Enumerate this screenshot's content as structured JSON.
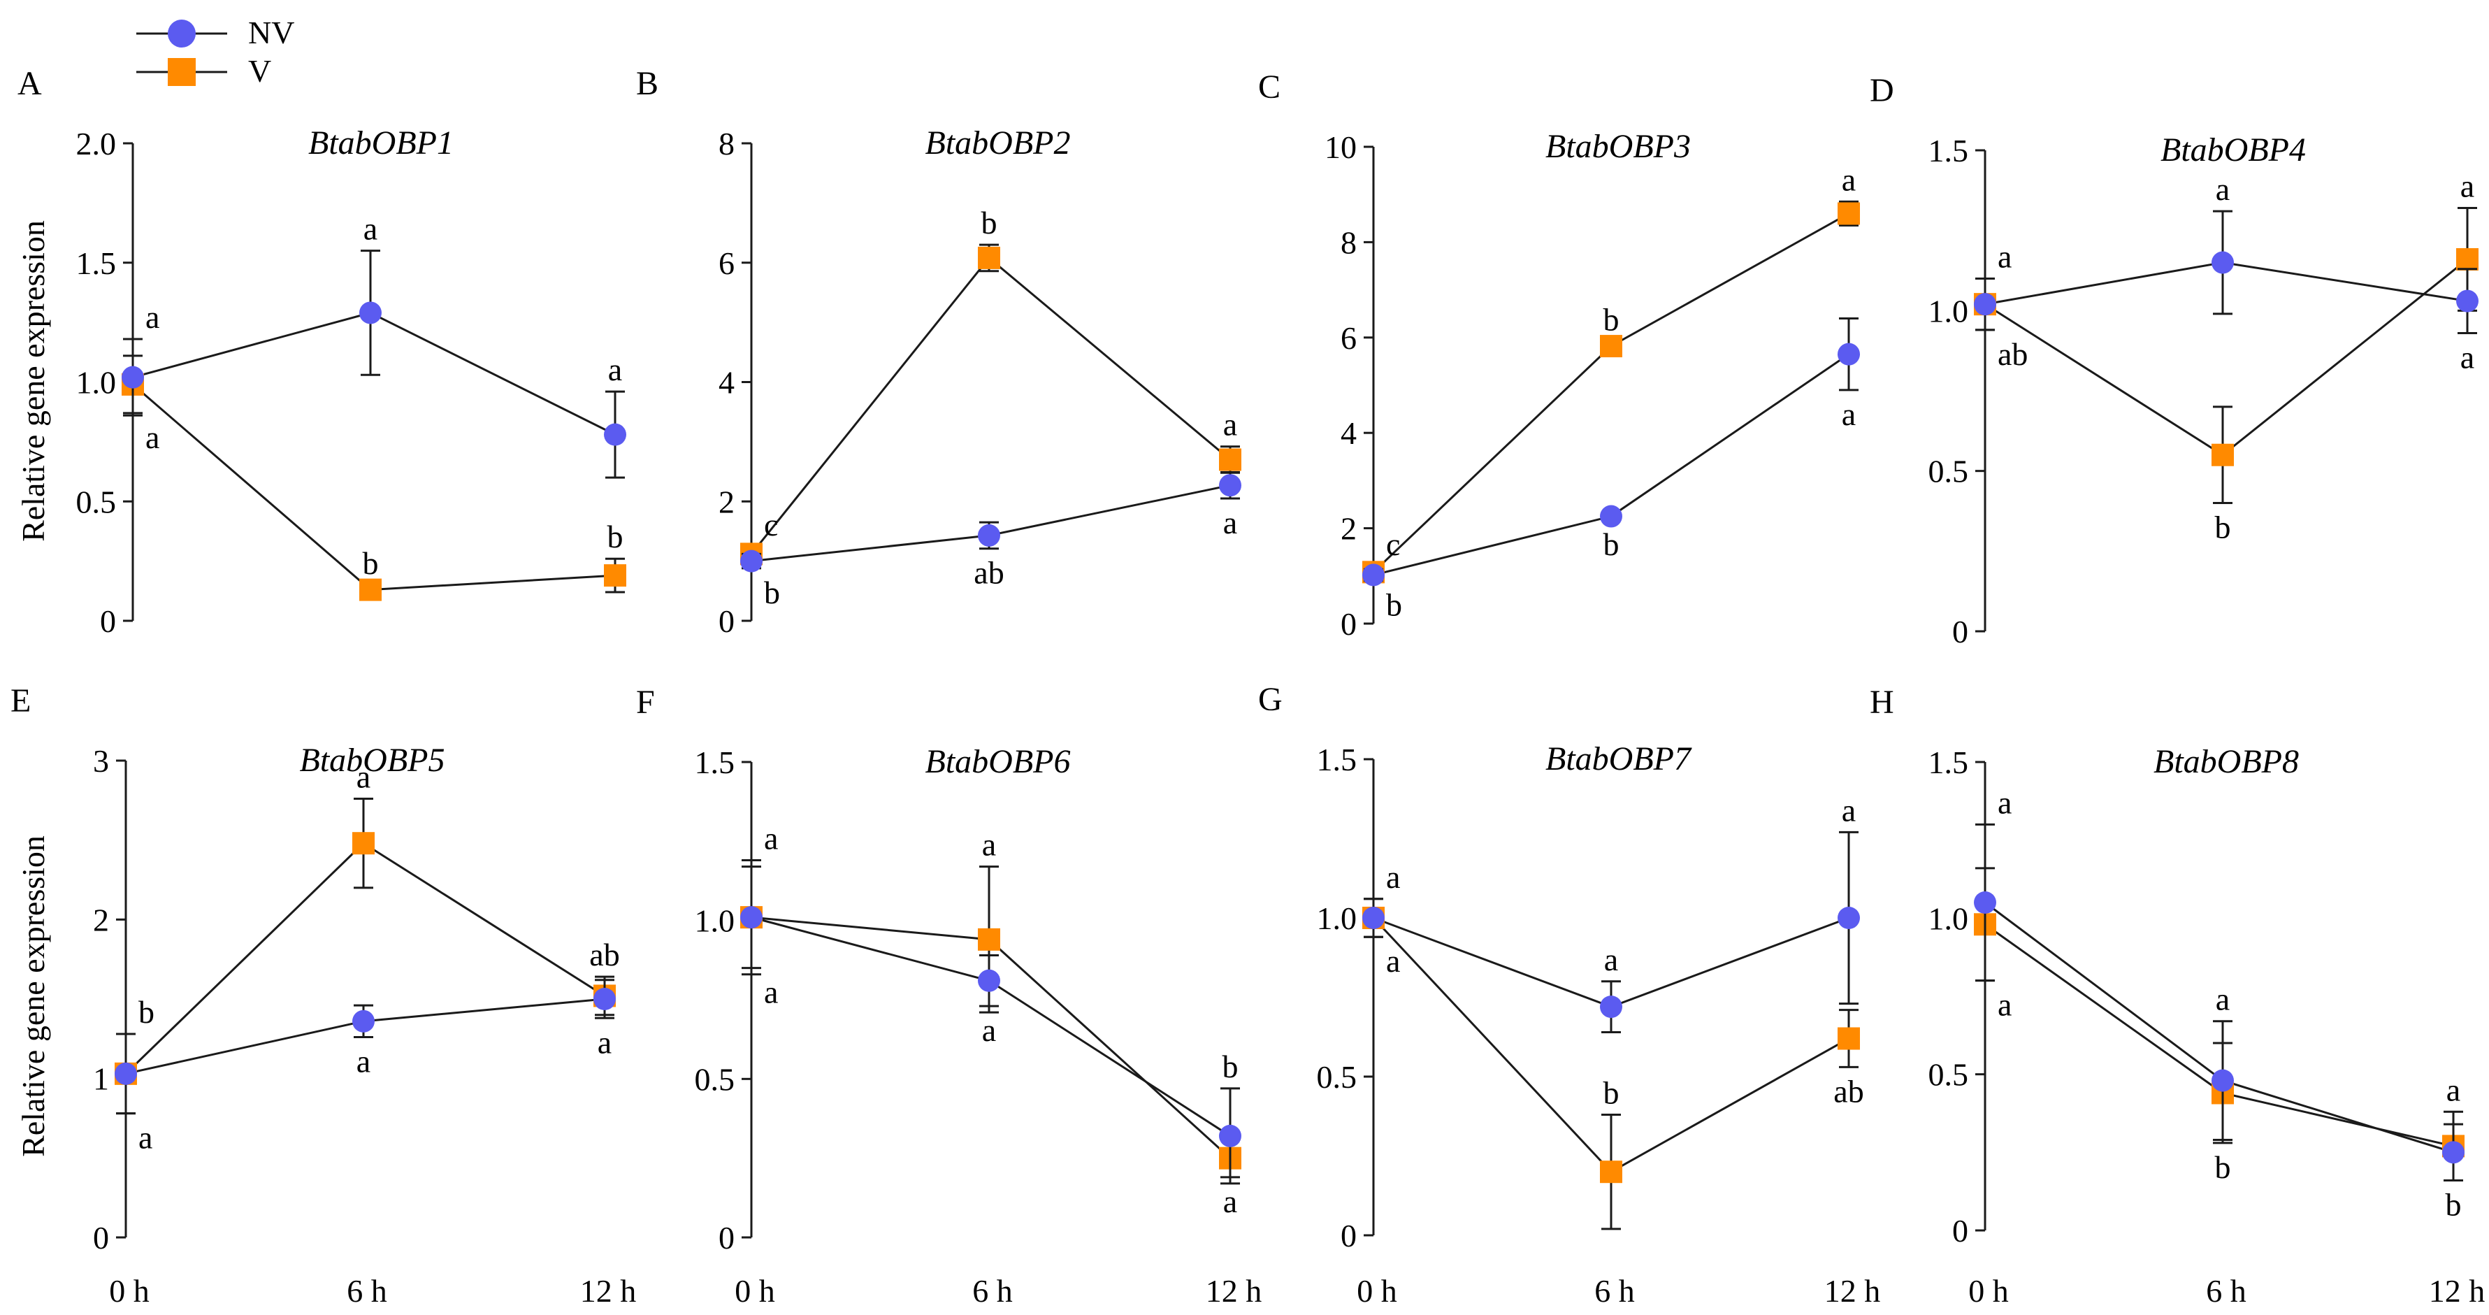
{
  "colors": {
    "nv": "#5b5bf0",
    "v": "#ff8a00",
    "line": "#1a1a1a"
  },
  "legend": [
    {
      "label": "NV",
      "marker": "circle",
      "color_key": "nv"
    },
    {
      "label": "V",
      "marker": "square",
      "color_key": "v"
    }
  ],
  "y_axis_label": "Relative gene expression",
  "x_tick_labels": [
    "0 h",
    "6 h",
    "12 h"
  ],
  "chart_data": [
    {
      "panel": "A",
      "title": "BtabOBP1",
      "type": "line",
      "x": [
        "0 h",
        "6 h",
        "12 h"
      ],
      "ylim": [
        0,
        2.0
      ],
      "yticks": [
        0,
        0.5,
        1.0,
        1.5,
        2.0
      ],
      "ytick_labels": [
        "0",
        "0.5",
        "1.0",
        "1.5",
        "2.0"
      ],
      "series": [
        {
          "name": "NV",
          "values": [
            1.02,
            1.29,
            0.78
          ],
          "errors": [
            0.16,
            0.26,
            0.18
          ],
          "letters": [
            "a",
            "a",
            "a"
          ]
        },
        {
          "name": "V",
          "values": [
            0.99,
            0.13,
            0.19
          ],
          "errors": [
            0.12,
            0.02,
            0.07
          ],
          "letters": [
            "a",
            "b",
            "b"
          ]
        }
      ],
      "letter_pos": [
        [
          "above",
          "above",
          "above"
        ],
        [
          "below",
          "above",
          "above"
        ]
      ]
    },
    {
      "panel": "B",
      "title": "BtabOBP2",
      "type": "line",
      "x": [
        "0 h",
        "6 h",
        "12 h"
      ],
      "ylim": [
        0,
        8
      ],
      "yticks": [
        0,
        2,
        4,
        6,
        8
      ],
      "ytick_labels": [
        "0",
        "2",
        "4",
        "6",
        "8"
      ],
      "series": [
        {
          "name": "NV",
          "values": [
            1.0,
            1.43,
            2.27
          ],
          "errors": [
            0.12,
            0.22,
            0.22
          ],
          "letters": [
            "b",
            "ab",
            "a"
          ]
        },
        {
          "name": "V",
          "values": [
            1.12,
            6.08,
            2.7
          ],
          "errors": [
            0.12,
            0.22,
            0.22
          ],
          "letters": [
            "c",
            "b",
            "a"
          ]
        }
      ],
      "letter_pos": [
        [
          "below",
          "below",
          "below"
        ],
        [
          "above",
          "above",
          "above"
        ]
      ]
    },
    {
      "panel": "C",
      "title": "BtabOBP3",
      "type": "line",
      "x": [
        "0 h",
        "6 h",
        "12 h"
      ],
      "ylim": [
        0,
        10
      ],
      "yticks": [
        0,
        2,
        4,
        6,
        8,
        10
      ],
      "ytick_labels": [
        "0",
        "2",
        "4",
        "6",
        "8",
        "10"
      ],
      "series": [
        {
          "name": "NV",
          "values": [
            1.02,
            2.25,
            5.65
          ],
          "errors": [
            0.12,
            0.08,
            0.75
          ],
          "letters": [
            "b",
            "b",
            "a"
          ]
        },
        {
          "name": "V",
          "values": [
            1.08,
            5.82,
            8.6
          ],
          "errors": [
            0.12,
            0.1,
            0.25
          ],
          "letters": [
            "c",
            "b",
            "a"
          ]
        }
      ],
      "letter_pos": [
        [
          "below",
          "below",
          "below"
        ],
        [
          "above",
          "above",
          "above"
        ]
      ]
    },
    {
      "panel": "D",
      "title": "BtabOBP4",
      "type": "line",
      "x": [
        "0 h",
        "6 h",
        "12 h"
      ],
      "ylim": [
        0,
        1.5
      ],
      "yticks": [
        0,
        0.5,
        1.0,
        1.5
      ],
      "ytick_labels": [
        "0",
        "0.5",
        "1.0",
        "1.5"
      ],
      "series": [
        {
          "name": "NV",
          "values": [
            1.02,
            1.15,
            1.03
          ],
          "errors": [
            0.08,
            0.16,
            0.1
          ],
          "letters": [
            "a",
            "a",
            "a"
          ]
        },
        {
          "name": "V",
          "values": [
            1.02,
            0.55,
            1.16
          ],
          "errors": [
            0.08,
            0.15,
            0.16
          ],
          "letters": [
            "ab",
            "b",
            "a"
          ]
        }
      ],
      "letter_pos": [
        [
          "above",
          "above",
          "below"
        ],
        [
          "below",
          "below",
          "above"
        ]
      ]
    },
    {
      "panel": "E",
      "title": "BtabOBP5",
      "type": "line",
      "x": [
        "0 h",
        "6 h",
        "12 h"
      ],
      "ylim": [
        0,
        3
      ],
      "yticks": [
        0,
        1,
        2,
        3
      ],
      "ytick_labels": [
        "0",
        "1",
        "2",
        "3"
      ],
      "series": [
        {
          "name": "NV",
          "values": [
            1.03,
            1.36,
            1.5
          ],
          "errors": [
            0.25,
            0.1,
            0.12
          ],
          "letters": [
            "a",
            "a",
            "a"
          ]
        },
        {
          "name": "V",
          "values": [
            1.03,
            2.48,
            1.52
          ],
          "errors": [
            0.25,
            0.28,
            0.12
          ],
          "letters": [
            "b",
            "a",
            "ab"
          ]
        }
      ],
      "letter_pos": [
        [
          "below",
          "below",
          "below"
        ],
        [
          "above",
          "above",
          "above"
        ]
      ]
    },
    {
      "panel": "F",
      "title": "BtabOBP6",
      "type": "line",
      "x": [
        "0 h",
        "6 h",
        "12 h"
      ],
      "ylim": [
        0,
        1.5
      ],
      "yticks": [
        0,
        0.5,
        1.0,
        1.5
      ],
      "ytick_labels": [
        "0",
        "0.5",
        "1.0",
        "1.5"
      ],
      "series": [
        {
          "name": "NV",
          "values": [
            1.01,
            0.81,
            0.32
          ],
          "errors": [
            0.18,
            0.08,
            0.15
          ],
          "letters": [
            "a",
            "a",
            "b"
          ]
        },
        {
          "name": "V",
          "values": [
            1.01,
            0.94,
            0.25
          ],
          "errors": [
            0.16,
            0.23,
            0.06
          ],
          "letters": [
            "a",
            "a",
            "a"
          ]
        }
      ],
      "letter_pos": [
        [
          "above",
          "below",
          "above"
        ],
        [
          "below",
          "above",
          "below"
        ]
      ]
    },
    {
      "panel": "G",
      "title": "BtabOBP7",
      "type": "line",
      "x": [
        "0 h",
        "6 h",
        "12 h"
      ],
      "ylim": [
        0,
        1.5
      ],
      "yticks": [
        0,
        0.5,
        1.0,
        1.5
      ],
      "ytick_labels": [
        "0",
        "0.5",
        "1.0",
        "1.5"
      ],
      "series": [
        {
          "name": "NV",
          "values": [
            1.0,
            0.72,
            1.0
          ],
          "errors": [
            0.06,
            0.08,
            0.27
          ],
          "letters": [
            "a",
            "a",
            "a"
          ]
        },
        {
          "name": "V",
          "values": [
            1.0,
            0.2,
            0.62
          ],
          "errors": [
            0.06,
            0.18,
            0.09
          ],
          "letters": [
            "a",
            "b",
            "ab"
          ]
        }
      ],
      "letter_pos": [
        [
          "above",
          "above",
          "above"
        ],
        [
          "below",
          "above",
          "below"
        ]
      ]
    },
    {
      "panel": "H",
      "title": "BtabOBP8",
      "type": "line",
      "x": [
        "0 h",
        "6 h",
        "12 h"
      ],
      "ylim": [
        0,
        1.5
      ],
      "yticks": [
        0,
        0.5,
        1.0,
        1.5
      ],
      "ytick_labels": [
        "0",
        "0.5",
        "1.0",
        "1.5"
      ],
      "series": [
        {
          "name": "NV",
          "values": [
            1.05,
            0.48,
            0.25
          ],
          "errors": [
            0.25,
            0.19,
            0.09
          ],
          "letters": [
            "a",
            "a",
            "b"
          ]
        },
        {
          "name": "V",
          "values": [
            0.98,
            0.44,
            0.27
          ],
          "errors": [
            0.18,
            0.16,
            0.11
          ],
          "letters": [
            "a",
            "b",
            "a"
          ]
        }
      ],
      "letter_pos": [
        [
          "above",
          "above",
          "below"
        ],
        [
          "below",
          "below",
          "above"
        ]
      ]
    }
  ]
}
